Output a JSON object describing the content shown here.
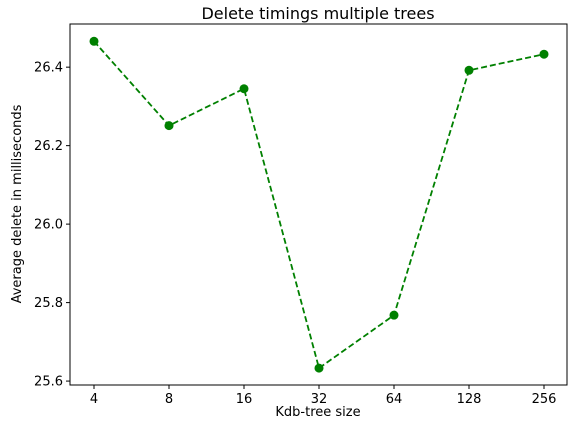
{
  "chart_data": {
    "type": "line",
    "title": "Delete timings multiple trees",
    "xlabel": "Kdb-tree size",
    "ylabel": "Average delete in milliseconds",
    "categories": [
      "4",
      "8",
      "16",
      "32",
      "64",
      "128",
      "256"
    ],
    "y_ticks": [
      "25.6",
      "25.8",
      "26.0",
      "26.2",
      "26.4"
    ],
    "y_tick_values": [
      25.6,
      25.8,
      26.0,
      26.2,
      26.4
    ],
    "ylim": [
      25.59,
      26.51
    ],
    "grid": false,
    "series": [
      {
        "values": [
          26.466,
          26.251,
          26.345,
          25.633,
          25.768,
          26.392,
          26.433
        ],
        "color": "#008000",
        "line_style": "dashed",
        "marker": "circle"
      }
    ]
  }
}
